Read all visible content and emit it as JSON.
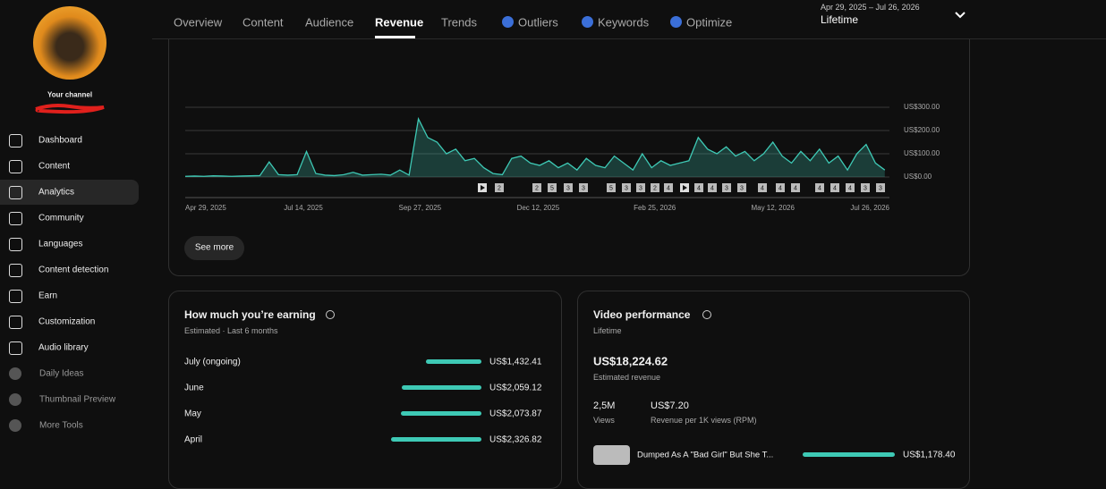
{
  "nav": {
    "tabs": [
      "Overview",
      "Content",
      "Audience",
      "Revenue",
      "Trends",
      "Outliers",
      "Keywords",
      "Optimize"
    ],
    "date_range": "Apr 29, 2025 – Jul 26, 2026",
    "period": "Lifetime"
  },
  "sidebar": {
    "channel_label": "Your channel",
    "items": [
      "Dashboard",
      "Content",
      "Analytics",
      "Community",
      "Languages",
      "Content detection",
      "Earn",
      "Customization",
      "Audio library"
    ],
    "tools": [
      "Daily Ideas",
      "Thumbnail Preview",
      "More Tools"
    ]
  },
  "revenue_chart": {
    "type": "line",
    "color": "#3ec9b5",
    "x": [
      0,
      6,
      12,
      18,
      24,
      30,
      36,
      42,
      48,
      54,
      60,
      66,
      72,
      78,
      84,
      90,
      96,
      102,
      108,
      114,
      120,
      126,
      132,
      138,
      144,
      150,
      156,
      162,
      168,
      174,
      180,
      186,
      192,
      198,
      204,
      210,
      216,
      222,
      228,
      234,
      240,
      246,
      252,
      258,
      264,
      270,
      276,
      282,
      288,
      294,
      300,
      306,
      312,
      318,
      324,
      330,
      336,
      342,
      348,
      354,
      360,
      366,
      372,
      378,
      384,
      390,
      396,
      402,
      408,
      414,
      420,
      426,
      432,
      438,
      444,
      450
    ],
    "values": [
      3,
      4,
      3,
      5,
      4,
      3,
      4,
      5,
      6,
      65,
      10,
      8,
      10,
      110,
      15,
      8,
      6,
      10,
      20,
      8,
      10,
      12,
      8,
      30,
      8,
      250,
      170,
      150,
      100,
      120,
      70,
      80,
      40,
      15,
      10,
      80,
      90,
      60,
      50,
      70,
      40,
      60,
      30,
      80,
      50,
      40,
      90,
      60,
      30,
      100,
      40,
      70,
      50,
      60,
      70,
      170,
      120,
      100,
      130,
      90,
      110,
      70,
      100,
      150,
      90,
      60,
      110,
      70,
      120,
      60,
      90,
      30,
      100,
      140,
      60,
      30
    ],
    "xlim": [
      0,
      453
    ],
    "xticks": [
      {
        "value": 0,
        "label": "Apr 29, 2025"
      },
      {
        "value": 76,
        "label": "Jul 14, 2025"
      },
      {
        "value": 151,
        "label": "Sep 27, 2025"
      },
      {
        "value": 227,
        "label": "Dec 12, 2025"
      },
      {
        "value": 302,
        "label": "Feb 25, 2026"
      },
      {
        "value": 378,
        "label": "May 12, 2026"
      },
      {
        "value": 453,
        "label": "Jul 26, 2026"
      }
    ],
    "ylim": [
      0,
      300
    ],
    "yticks": [
      {
        "value": 0,
        "label": "US$0.00"
      },
      {
        "value": 100,
        "label": "US$100.00"
      },
      {
        "value": 200,
        "label": "US$200.00"
      },
      {
        "value": 300,
        "label": "US$300.00"
      }
    ],
    "grid": true,
    "markers": [
      "2",
      "2",
      "5",
      "3",
      "3",
      "5",
      "3",
      "3",
      "2",
      "4",
      "4",
      "4",
      "3",
      "3",
      "4",
      "4",
      "4",
      "4",
      "4",
      "4",
      "3",
      "3"
    ]
  },
  "see_more": "See more",
  "earning": {
    "title": "How much you’re earning",
    "subtitle": "Estimated · Last 6 months",
    "rows": [
      {
        "month": "July (ongoing)",
        "value": 1432.41,
        "value_label": "US$1,432.41"
      },
      {
        "month": "June",
        "value": 2059.12,
        "value_label": "US$2,059.12"
      },
      {
        "month": "May",
        "value": 2073.87,
        "value_label": "US$2,073.87"
      },
      {
        "month": "April",
        "value": 2326.82,
        "value_label": "US$2,326.82"
      }
    ]
  },
  "video_performance": {
    "title": "Video performance",
    "subtitle": "Lifetime",
    "revenue": "US$18,224.62",
    "revenue_label": "Estimated revenue",
    "views": "2,5M",
    "views_label": "Views",
    "rpm": "US$7.20",
    "rpm_label": "Revenue per 1K views (RPM)",
    "top_video": {
      "title": "Dumped As A \"Bad Girl\" But She T...",
      "revenue": 1178.4,
      "revenue_label": "US$1,178.40"
    }
  }
}
